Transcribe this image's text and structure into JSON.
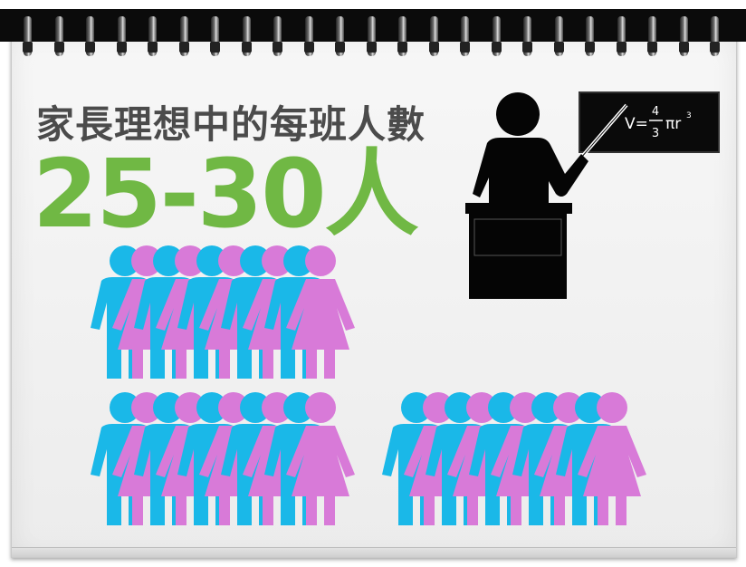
{
  "headline": "家長理想中的每班人數",
  "highlight_value": "25-30人",
  "blackboard_formula": {
    "prefix": "V=",
    "numerator": "4",
    "denominator": "3",
    "suffix": "πr",
    "exponent": "3"
  },
  "colors": {
    "boy": "#1ab8e8",
    "girl": "#d87ad8",
    "accent_green": "#70b844",
    "headline_gray": "#4b4b4b"
  },
  "icons": [
    "teacher-icon",
    "blackboard-icon",
    "lectern-icon",
    "boy-icon",
    "girl-icon",
    "spiral-ring-icon"
  ],
  "people_groups": [
    {
      "label": "",
      "count": 10
    },
    {
      "label": "",
      "count": 10
    },
    {
      "label": "",
      "count": 10
    }
  ]
}
